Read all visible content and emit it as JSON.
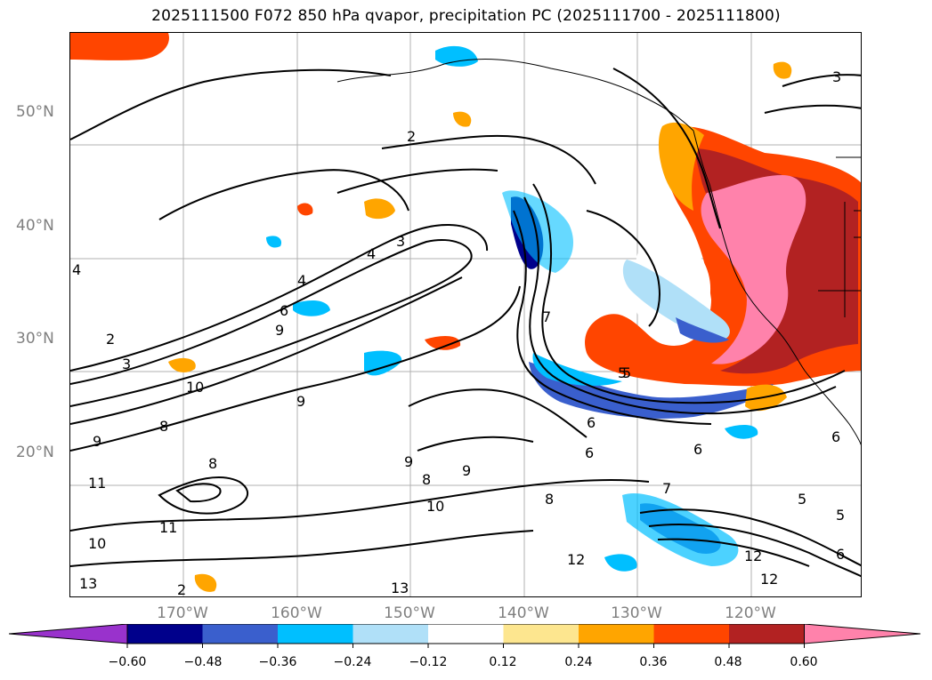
{
  "title": "2025111500 F072 850 hPa qvapor, precipitation PC (2025111700 - 2025111800)",
  "lat_labels": [
    "50°N",
    "40°N",
    "30°N",
    "20°N"
  ],
  "lon_labels": [
    "170°W",
    "160°W",
    "150°W",
    "140°W",
    "130°W",
    "120°W"
  ],
  "contour_labels": [
    "2",
    "2",
    "3",
    "3",
    "4",
    "4",
    "4",
    "6",
    "9",
    "10",
    "9",
    "8",
    "11",
    "11",
    "10",
    "13",
    "2",
    "8",
    "8",
    "9",
    "10",
    "12",
    "13",
    "7",
    "6",
    "6",
    "5",
    "8",
    "7",
    "5",
    "5",
    "6",
    "12",
    "12",
    "9",
    "9",
    "6",
    "6",
    "3",
    "5"
  ],
  "colorbar": {
    "tick_labels": [
      "−0.60",
      "−0.48",
      "−0.36",
      "−0.24",
      "−0.12",
      "0.12",
      "0.24",
      "0.36",
      "0.48",
      "0.60"
    ],
    "bins": [
      {
        "color": "#9932cc"
      },
      {
        "color": "#00008b"
      },
      {
        "color": "#3a5fcd"
      },
      {
        "color": "#00bfff"
      },
      {
        "color": "#b0e0f8"
      },
      {
        "color": "#ffffff"
      },
      {
        "color": "#fde68f"
      },
      {
        "color": "#ffa500"
      },
      {
        "color": "#ff4500"
      },
      {
        "color": "#b22222"
      },
      {
        "color": "#ff82ab"
      }
    ]
  }
}
